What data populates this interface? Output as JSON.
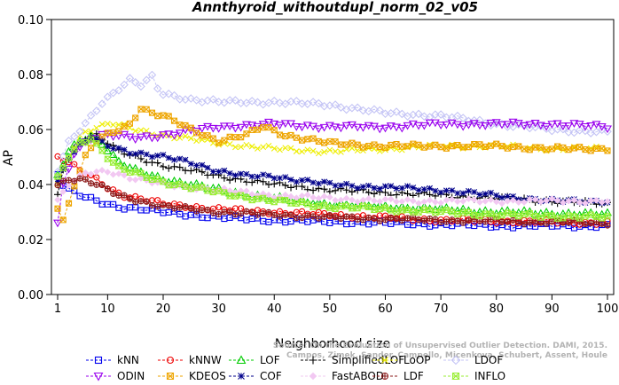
{
  "chart_data": {
    "type": "line",
    "title": "Annthyroid_withoutdupl_norm_02_v05",
    "xlabel": "Neighborhood size",
    "ylabel": "AP",
    "xlim": [
      1,
      100
    ],
    "ylim": [
      0.0,
      0.1
    ],
    "xticks": [
      1,
      10,
      20,
      30,
      40,
      50,
      60,
      70,
      80,
      90,
      100
    ],
    "yticks": [
      "0.00",
      "0.02",
      "0.04",
      "0.06",
      "0.08",
      "0.10"
    ],
    "grid": false,
    "legend_position": "bottom",
    "watermark": [
      "Source: On the Evaluation of Unsupervised Outlier Detection. DAMI, 2015.",
      "Campos, Zimek, Sander, Campello, Micenkova, Schubert, Assent, Houle"
    ],
    "series": [
      {
        "name": "kNN",
        "color": "#0000ee",
        "marker": "square",
        "anchors": [
          [
            1,
            0.044
          ],
          [
            2,
            0.04
          ],
          [
            3,
            0.038
          ],
          [
            5,
            0.036
          ],
          [
            8,
            0.034
          ],
          [
            12,
            0.032
          ],
          [
            20,
            0.03
          ],
          [
            30,
            0.028
          ],
          [
            40,
            0.027
          ],
          [
            60,
            0.026
          ],
          [
            80,
            0.025
          ],
          [
            100,
            0.025
          ]
        ]
      },
      {
        "name": "kNNW",
        "color": "#ee0000",
        "marker": "circle",
        "anchors": [
          [
            1,
            0.05
          ],
          [
            2,
            0.049
          ],
          [
            3,
            0.048
          ],
          [
            5,
            0.045
          ],
          [
            8,
            0.042
          ],
          [
            10,
            0.039
          ],
          [
            13,
            0.036
          ],
          [
            20,
            0.033
          ],
          [
            30,
            0.031
          ],
          [
            50,
            0.029
          ],
          [
            70,
            0.027
          ],
          [
            100,
            0.026
          ]
        ]
      },
      {
        "name": "LOF",
        "color": "#00cc00",
        "marker": "triangle",
        "anchors": [
          [
            1,
            0.043
          ],
          [
            3,
            0.052
          ],
          [
            5,
            0.056
          ],
          [
            7,
            0.058
          ],
          [
            9,
            0.055
          ],
          [
            12,
            0.048
          ],
          [
            15,
            0.045
          ],
          [
            20,
            0.042
          ],
          [
            30,
            0.038
          ],
          [
            40,
            0.035
          ],
          [
            50,
            0.033
          ],
          [
            60,
            0.032
          ],
          [
            80,
            0.03
          ],
          [
            100,
            0.029
          ]
        ]
      },
      {
        "name": "SimplifiedLOF",
        "color": "#000000",
        "marker": "plus",
        "anchors": [
          [
            1,
            0.036
          ],
          [
            2,
            0.046
          ],
          [
            4,
            0.053
          ],
          [
            6,
            0.057
          ],
          [
            8,
            0.058
          ],
          [
            10,
            0.055
          ],
          [
            12,
            0.052
          ],
          [
            15,
            0.05
          ],
          [
            20,
            0.047
          ],
          [
            30,
            0.043
          ],
          [
            40,
            0.04
          ],
          [
            50,
            0.038
          ],
          [
            60,
            0.037
          ],
          [
            80,
            0.035
          ],
          [
            100,
            0.033
          ]
        ]
      },
      {
        "name": "LoOP",
        "color": "#eeee00",
        "marker": "x",
        "anchors": [
          [
            1,
            0.04
          ],
          [
            3,
            0.05
          ],
          [
            5,
            0.058
          ],
          [
            8,
            0.061
          ],
          [
            11,
            0.062
          ],
          [
            15,
            0.06
          ],
          [
            20,
            0.058
          ],
          [
            30,
            0.055
          ],
          [
            40,
            0.053
          ],
          [
            50,
            0.052
          ],
          [
            60,
            0.053
          ],
          [
            70,
            0.054
          ],
          [
            80,
            0.054
          ],
          [
            90,
            0.053
          ],
          [
            100,
            0.053
          ]
        ]
      },
      {
        "name": "LDOF",
        "color": "#c4c4f5",
        "marker": "diamond",
        "anchors": [
          [
            1,
            0.045
          ],
          [
            3,
            0.055
          ],
          [
            6,
            0.062
          ],
          [
            9,
            0.07
          ],
          [
            12,
            0.075
          ],
          [
            14,
            0.078
          ],
          [
            16,
            0.076
          ],
          [
            18,
            0.079
          ],
          [
            19,
            0.075
          ],
          [
            20,
            0.073
          ],
          [
            25,
            0.071
          ],
          [
            30,
            0.07
          ],
          [
            40,
            0.07
          ],
          [
            50,
            0.069
          ],
          [
            60,
            0.066
          ],
          [
            70,
            0.065
          ],
          [
            80,
            0.062
          ],
          [
            90,
            0.06
          ],
          [
            100,
            0.059
          ]
        ]
      },
      {
        "name": "ODIN",
        "color": "#9900ee",
        "marker": "triangle-down",
        "anchors": [
          [
            1,
            0.026
          ],
          [
            2,
            0.04
          ],
          [
            4,
            0.052
          ],
          [
            7,
            0.057
          ],
          [
            10,
            0.058
          ],
          [
            15,
            0.057
          ],
          [
            20,
            0.058
          ],
          [
            30,
            0.061
          ],
          [
            40,
            0.062
          ],
          [
            50,
            0.061
          ],
          [
            60,
            0.061
          ],
          [
            70,
            0.062
          ],
          [
            80,
            0.062
          ],
          [
            90,
            0.062
          ],
          [
            100,
            0.061
          ]
        ]
      },
      {
        "name": "KDEOS",
        "color": "#eea500",
        "marker": "square-x",
        "anchors": [
          [
            1,
            0.032
          ],
          [
            2,
            0.027
          ],
          [
            3,
            0.033
          ],
          [
            4,
            0.04
          ],
          [
            6,
            0.05
          ],
          [
            8,
            0.056
          ],
          [
            10,
            0.058
          ],
          [
            12,
            0.06
          ],
          [
            14,
            0.062
          ],
          [
            16,
            0.068
          ],
          [
            18,
            0.066
          ],
          [
            20,
            0.065
          ],
          [
            25,
            0.06
          ],
          [
            30,
            0.056
          ],
          [
            35,
            0.058
          ],
          [
            38,
            0.061
          ],
          [
            42,
            0.058
          ],
          [
            50,
            0.055
          ],
          [
            60,
            0.054
          ],
          [
            70,
            0.054
          ],
          [
            80,
            0.054
          ],
          [
            90,
            0.053
          ],
          [
            100,
            0.053
          ]
        ]
      },
      {
        "name": "COF",
        "color": "#00008b",
        "marker": "star",
        "anchors": [
          [
            1,
            0.041
          ],
          [
            3,
            0.05
          ],
          [
            5,
            0.054
          ],
          [
            7,
            0.057
          ],
          [
            10,
            0.054
          ],
          [
            14,
            0.052
          ],
          [
            20,
            0.05
          ],
          [
            25,
            0.048
          ],
          [
            30,
            0.045
          ],
          [
            35,
            0.043
          ],
          [
            40,
            0.043
          ],
          [
            50,
            0.04
          ],
          [
            60,
            0.039
          ],
          [
            70,
            0.038
          ],
          [
            80,
            0.036
          ],
          [
            90,
            0.034
          ],
          [
            100,
            0.034
          ]
        ]
      },
      {
        "name": "FastABOD",
        "color": "#f2c8f2",
        "marker": "diamond-filled",
        "anchors": [
          [
            1,
            0.034
          ],
          [
            3,
            0.04
          ],
          [
            6,
            0.044
          ],
          [
            10,
            0.045
          ],
          [
            15,
            0.042
          ],
          [
            20,
            0.04
          ],
          [
            30,
            0.038
          ],
          [
            40,
            0.036
          ],
          [
            50,
            0.035
          ],
          [
            60,
            0.034
          ],
          [
            80,
            0.034
          ],
          [
            100,
            0.034
          ]
        ]
      },
      {
        "name": "LDF",
        "color": "#8b1a1a",
        "marker": "circle-plus",
        "anchors": [
          [
            1,
            0.04
          ],
          [
            3,
            0.042
          ],
          [
            5,
            0.042
          ],
          [
            8,
            0.04
          ],
          [
            12,
            0.036
          ],
          [
            20,
            0.032
          ],
          [
            30,
            0.03
          ],
          [
            50,
            0.028
          ],
          [
            70,
            0.027
          ],
          [
            100,
            0.026
          ]
        ]
      },
      {
        "name": "INFLO",
        "color": "#99ee33",
        "marker": "square-hourglass",
        "anchors": [
          [
            1,
            0.042
          ],
          [
            3,
            0.05
          ],
          [
            5,
            0.055
          ],
          [
            7,
            0.057
          ],
          [
            10,
            0.05
          ],
          [
            12,
            0.046
          ],
          [
            15,
            0.044
          ],
          [
            20,
            0.041
          ],
          [
            30,
            0.037
          ],
          [
            40,
            0.034
          ],
          [
            50,
            0.032
          ],
          [
            60,
            0.031
          ],
          [
            80,
            0.029
          ],
          [
            100,
            0.028
          ]
        ]
      }
    ]
  }
}
